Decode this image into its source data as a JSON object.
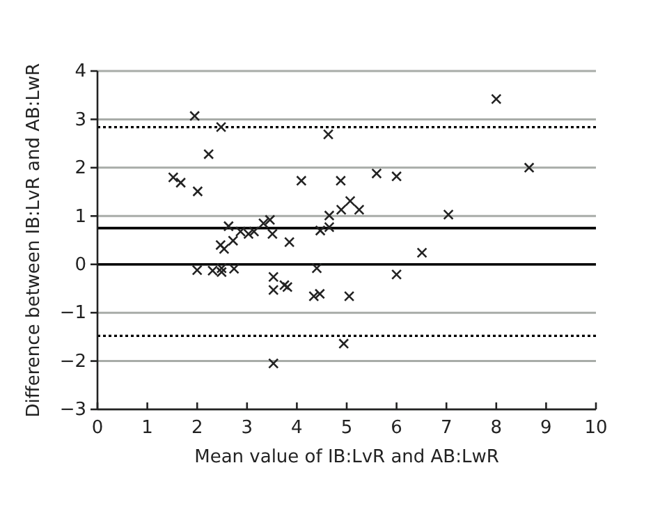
{
  "chart_data": {
    "type": "scatter",
    "xlabel": "Mean value of IB:LvR and AB:LwR",
    "ylabel": "Difference between IB:LvR and AB:LwR",
    "xlim": [
      0,
      10
    ],
    "xticks": [
      0,
      1,
      2,
      3,
      4,
      5,
      6,
      7,
      8,
      9,
      10
    ],
    "ylim": [
      -3,
      4
    ],
    "yticks": [
      -3,
      -2,
      -1,
      0,
      1,
      2,
      3,
      4
    ],
    "grid": "y",
    "marker": "cross",
    "series": [
      {
        "color": "#222222",
        "x": [
          1.95,
          2.48,
          2.23,
          1.52,
          1.67,
          2.01,
          4.63,
          4.09,
          4.88,
          5.07,
          4.89,
          4.65,
          4.65,
          4.47,
          5.25,
          2.63,
          2.87,
          2.72,
          3.14,
          3.03,
          3.33,
          3.46,
          3.51,
          3.85,
          2.47,
          2.54,
          2.0,
          2.31,
          2.49,
          2.49,
          2.74,
          3.53,
          3.53,
          3.75,
          3.81,
          4.4,
          4.34,
          4.46,
          5.05,
          4.94,
          3.53,
          8.0,
          5.6,
          6.0,
          8.66,
          7.04,
          6.51,
          6.0
        ],
        "values": [
          3.07,
          2.84,
          2.28,
          1.8,
          1.69,
          1.51,
          2.69,
          1.73,
          1.73,
          1.31,
          1.13,
          1.01,
          0.77,
          0.7,
          1.13,
          0.79,
          0.68,
          0.49,
          0.68,
          0.63,
          0.85,
          0.92,
          0.63,
          0.46,
          0.4,
          0.32,
          -0.12,
          -0.13,
          -0.08,
          -0.16,
          -0.09,
          -0.26,
          -0.53,
          -0.43,
          -0.47,
          -0.08,
          -0.66,
          -0.61,
          -0.66,
          -1.64,
          -2.05,
          3.42,
          1.88,
          1.82,
          2.0,
          1.03,
          0.24,
          -0.21
        ]
      }
    ],
    "ref_lines": [
      {
        "axis": "y",
        "value": 0,
        "color": "#000000",
        "line_style": "solid"
      },
      {
        "axis": "y",
        "value": 0.75,
        "color": "#000000",
        "line_style": "solid"
      },
      {
        "axis": "y",
        "value": 2.84,
        "color": "#000000",
        "line_style": "dotted"
      },
      {
        "axis": "y",
        "value": -1.48,
        "color": "#000000",
        "line_style": "dotted"
      }
    ]
  }
}
